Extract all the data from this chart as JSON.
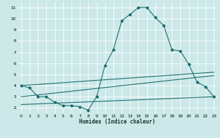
{
  "xlabel": "Humidex (Indice chaleur)",
  "background_color": "#cce8e8",
  "grid_color": "#ffffff",
  "line_color": "#1a6b6b",
  "x_ticks": [
    0,
    1,
    2,
    3,
    4,
    5,
    6,
    7,
    8,
    9,
    10,
    11,
    12,
    13,
    14,
    15,
    16,
    17,
    18,
    19,
    20,
    21,
    22,
    23
  ],
  "y_ticks": [
    2,
    3,
    4,
    5,
    6,
    7,
    8,
    9,
    10,
    11
  ],
  "xlim": [
    -0.5,
    23.5
  ],
  "ylim": [
    1.5,
    11.5
  ],
  "line1_x": [
    0,
    1,
    2,
    3,
    4,
    5,
    6,
    7,
    8,
    9,
    10,
    11,
    12,
    13,
    14,
    15,
    16,
    17,
    18,
    19,
    20,
    21,
    22,
    23
  ],
  "line1_y": [
    4.0,
    3.8,
    3.0,
    3.0,
    2.5,
    2.2,
    2.2,
    2.1,
    1.8,
    3.0,
    5.8,
    7.2,
    9.8,
    10.4,
    11.0,
    11.0,
    10.1,
    9.4,
    7.2,
    7.1,
    5.9,
    4.3,
    3.9,
    3.0
  ],
  "line2_x": [
    0,
    23
  ],
  "line2_y": [
    4.0,
    5.2
  ],
  "line3_x": [
    0,
    23
  ],
  "line3_y": [
    3.0,
    4.9
  ],
  "line4_x": [
    0,
    23
  ],
  "line4_y": [
    2.3,
    3.0
  ]
}
